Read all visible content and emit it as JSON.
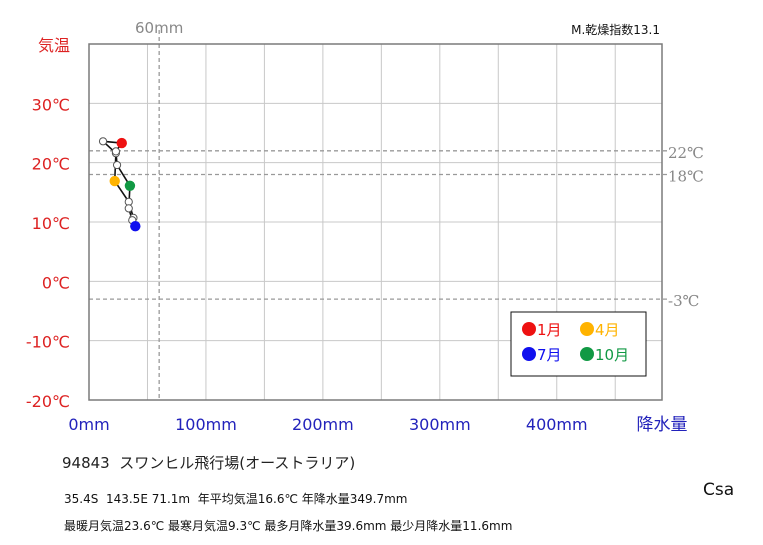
{
  "chart_data": {
    "type": "scatter",
    "y_title": "気温",
    "x_title": "降水量",
    "x_ref_label": "60mm",
    "aridity_label": "M.乾燥指数13.1",
    "ylim": [
      -20,
      40
    ],
    "xlim": [
      0,
      490
    ],
    "y_ticks": [
      {
        "value": 30,
        "label": "30℃"
      },
      {
        "value": 20,
        "label": "20℃"
      },
      {
        "value": 10,
        "label": "10℃"
      },
      {
        "value": 0,
        "label": "0℃"
      },
      {
        "value": -10,
        "label": "-10℃"
      },
      {
        "value": -20,
        "label": "-20℃"
      }
    ],
    "x_ticks": [
      {
        "value": 0,
        "label": "0mm"
      },
      {
        "value": 100,
        "label": "100mm"
      },
      {
        "value": 200,
        "label": "200mm"
      },
      {
        "value": 300,
        "label": "300mm"
      },
      {
        "value": 400,
        "label": "400mm"
      }
    ],
    "ref_lines_y": [
      {
        "value": 22,
        "label": "22℃"
      },
      {
        "value": 18,
        "label": "18℃"
      },
      {
        "value": -3,
        "label": "-3℃"
      }
    ],
    "ref_line_x": 60,
    "months": [
      {
        "month": 1,
        "precip": 28,
        "temp": 23.3
      },
      {
        "month": 2,
        "precip": 12,
        "temp": 23.6
      },
      {
        "month": 3,
        "precip": 23,
        "temp": 21.6
      },
      {
        "month": 4,
        "precip": 22,
        "temp": 16.9
      },
      {
        "month": 5,
        "precip": 34,
        "temp": 13.4
      },
      {
        "month": 6,
        "precip": 38,
        "temp": 10.7
      },
      {
        "month": 7,
        "precip": 39.6,
        "temp": 9.3
      },
      {
        "month": 8,
        "precip": 37,
        "temp": 10.3
      },
      {
        "month": 9,
        "precip": 34,
        "temp": 12.3
      },
      {
        "month": 10,
        "precip": 35,
        "temp": 16.1
      },
      {
        "month": 11,
        "precip": 24,
        "temp": 19.6
      },
      {
        "month": 12,
        "precip": 23,
        "temp": 21.9
      }
    ],
    "highlights": [
      {
        "month": 1,
        "label": "1月",
        "color": "#ee1111"
      },
      {
        "month": 4,
        "label": "4月",
        "color": "#ffb300"
      },
      {
        "month": 7,
        "label": "7月",
        "color": "#1010ee"
      },
      {
        "month": 10,
        "label": "10月",
        "color": "#119944"
      }
    ],
    "legend_position": "bottom-right"
  },
  "colors": {
    "temp_axis": "#dd2222",
    "precip_axis": "#2222bb",
    "grid": "#c8c8c8",
    "ref_line": "#999999",
    "ref_text": "#888888"
  },
  "station": {
    "title": "94843  スワンヒル飛行場(オーストラリア)",
    "stats_line1": "35.4S  143.5E 71.1m  年平均気温16.6℃ 年降水量349.7mm",
    "stats_line2": "最暖月気温23.6℃ 最寒月気温9.3℃ 最多月降水量39.6mm 最少月降水量11.6mm",
    "climate_class": "Csa"
  }
}
